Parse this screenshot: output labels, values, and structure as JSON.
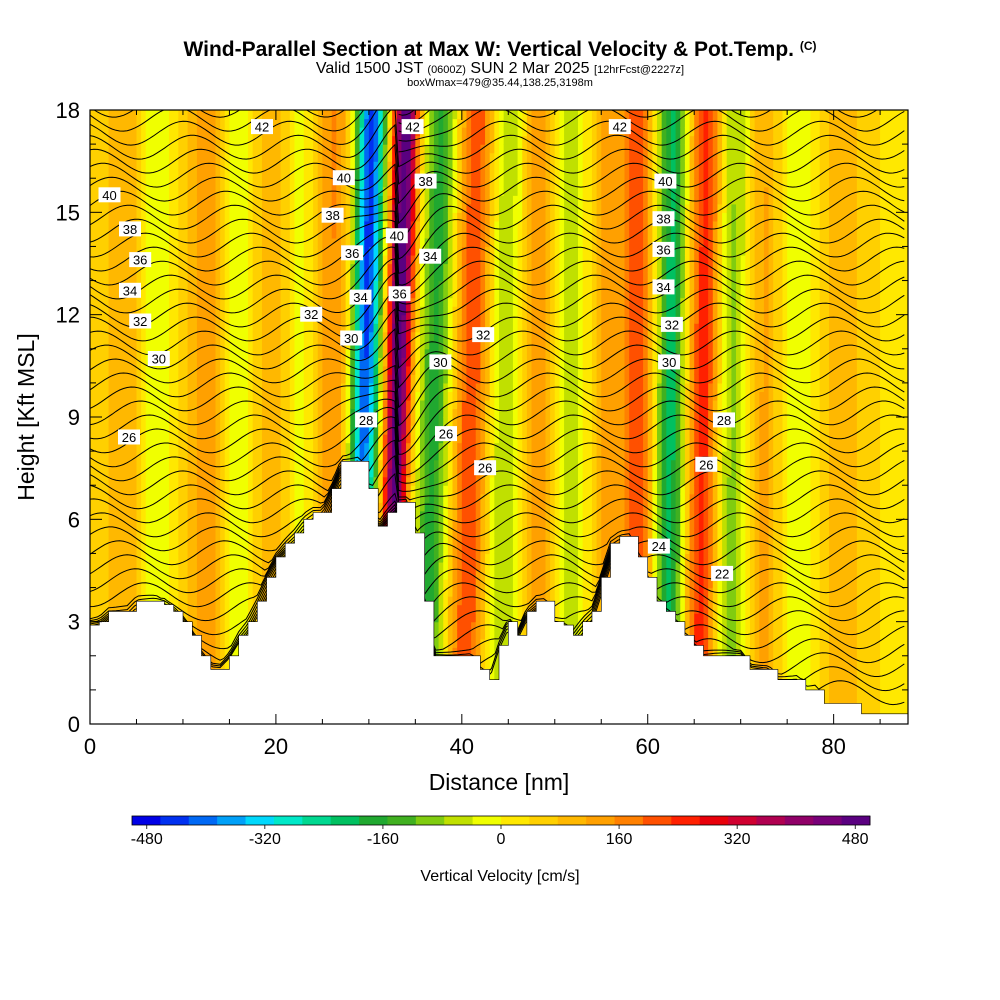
{
  "title_main": "Wind-Parallel Section at Max W: Vertical Velocity & Pot.Temp.",
  "title_mark": "(C)",
  "subtitle_main": "Valid 1500 JST",
  "subtitle_utc": "(0600Z)",
  "subtitle_date": "SUN 2 Mar 2025",
  "subtitle_fcst": "[12hrFcst@2227z]",
  "subsubtitle": "boxWmax=479@35.44,138.25,3198m",
  "chart_data": {
    "type": "heatmap",
    "title": "Wind-Parallel Section at Max W: Vertical Velocity & Pot.Temp.",
    "xlabel": "Distance [nm]",
    "ylabel": "Height [Kft MSL]",
    "xlim": [
      0,
      88
    ],
    "ylim": [
      0,
      18
    ],
    "x_ticks": [
      "0",
      "20",
      "40",
      "60",
      "80"
    ],
    "x_tick_values": [
      0,
      20,
      40,
      60,
      80
    ],
    "y_ticks": [
      "0",
      "3",
      "6",
      "9",
      "12",
      "15",
      "18"
    ],
    "y_tick_values": [
      0,
      3,
      6,
      9,
      12,
      15,
      18
    ],
    "colorbar": {
      "label": "Vertical Velocity [cm/s]",
      "range": [
        -500,
        500
      ],
      "labels": [
        "-480",
        "-320",
        "-160",
        "0",
        "160",
        "320",
        "480"
      ],
      "label_values": [
        -480,
        -320,
        -160,
        0,
        160,
        320,
        480
      ],
      "colors": [
        "#0000e6",
        "#0030f0",
        "#0068f4",
        "#00a0f8",
        "#00d8fc",
        "#00e8c8",
        "#00d890",
        "#00c060",
        "#20a830",
        "#40b020",
        "#80cc10",
        "#c0e000",
        "#f0ff00",
        "#ffe800",
        "#ffd000",
        "#ffb800",
        "#ffa000",
        "#ff8000",
        "#ff5000",
        "#ff2000",
        "#e8000a",
        "#d00030",
        "#b00050",
        "#900068",
        "#780078",
        "#5a0080"
      ]
    },
    "terrain_kft": {
      "x": [
        0,
        1,
        2,
        3,
        4,
        5,
        6,
        7,
        8,
        9,
        10,
        11,
        12,
        13,
        14,
        15,
        16,
        17,
        18,
        19,
        20,
        21,
        22,
        23,
        24,
        25,
        26,
        27,
        28,
        29,
        30,
        31,
        32,
        33,
        34,
        35,
        36,
        37,
        38,
        39,
        40,
        41,
        42,
        43,
        44,
        45,
        46,
        47,
        48,
        49,
        50,
        51,
        52,
        53,
        54,
        55,
        56,
        57,
        58,
        59,
        60,
        61,
        62,
        63,
        64,
        65,
        66,
        67,
        68,
        69,
        70,
        71,
        72,
        73,
        74,
        75,
        76,
        77,
        78,
        79,
        80,
        81,
        82,
        83,
        84,
        85,
        86,
        87,
        88
      ],
      "y": [
        2.9,
        3.0,
        3.3,
        3.3,
        3.3,
        3.6,
        3.6,
        3.6,
        3.5,
        3.3,
        3.0,
        2.6,
        2.0,
        1.6,
        1.6,
        2.0,
        2.6,
        3.0,
        3.6,
        4.3,
        4.9,
        5.3,
        5.6,
        6.0,
        6.2,
        6.2,
        6.9,
        7.7,
        7.7,
        7.7,
        6.9,
        5.8,
        6.2,
        6.5,
        6.5,
        5.6,
        3.6,
        2.0,
        2.0,
        2.0,
        2.0,
        2.0,
        1.6,
        1.3,
        2.3,
        3.0,
        2.6,
        3.3,
        3.6,
        3.6,
        3.0,
        2.9,
        2.6,
        3.0,
        3.3,
        4.3,
        5.3,
        5.5,
        5.5,
        4.9,
        4.3,
        3.6,
        3.3,
        3.0,
        2.6,
        2.3,
        2.0,
        2.0,
        2.0,
        2.0,
        2.0,
        1.6,
        1.6,
        1.6,
        1.3,
        1.3,
        1.3,
        1.0,
        1.0,
        0.6,
        0.6,
        0.6,
        0.6,
        0.3,
        0.3,
        0.3,
        0.3,
        0.3,
        0.3
      ]
    },
    "w_features": [
      {
        "x_center": 4,
        "width": 3,
        "w": 80,
        "tilt": 0
      },
      {
        "x_center": 7,
        "width": 2,
        "w": -90,
        "tilt": 0
      },
      {
        "x_center": 13,
        "width": 2.5,
        "w": 120,
        "tilt": 0
      },
      {
        "x_center": 15.5,
        "width": 2,
        "w": -110,
        "tilt": 0
      },
      {
        "x_center": 20,
        "width": 2.5,
        "w": 100,
        "tilt": 0
      },
      {
        "x_center": 22.5,
        "width": 2,
        "w": -100,
        "tilt": 0
      },
      {
        "x_center": 26,
        "width": 2.5,
        "w": 130,
        "tilt": 0
      },
      {
        "x_center": 29.5,
        "width": 1.6,
        "w": -480,
        "tilt": 0.09
      },
      {
        "x_center": 33.0,
        "width": 1.4,
        "w": 480,
        "tilt": 0.11
      },
      {
        "x_center": 37.0,
        "width": 1.8,
        "w": -200,
        "tilt": 0.1
      },
      {
        "x_center": 41.0,
        "width": 2.0,
        "w": 200,
        "tilt": 0.08
      },
      {
        "x_center": 44.5,
        "width": 2.0,
        "w": -110,
        "tilt": 0.05
      },
      {
        "x_center": 48.5,
        "width": 2.0,
        "w": 120,
        "tilt": 0
      },
      {
        "x_center": 51.5,
        "width": 2.0,
        "w": -90,
        "tilt": 0
      },
      {
        "x_center": 56,
        "width": 2.0,
        "w": 110,
        "tilt": 0
      },
      {
        "x_center": 59,
        "width": 1.5,
        "w": 180,
        "tilt": 0
      },
      {
        "x_center": 62.5,
        "width": 1.6,
        "w": -240,
        "tilt": 0.03
      },
      {
        "x_center": 66,
        "width": 1.8,
        "w": 230,
        "tilt": 0.05
      },
      {
        "x_center": 69,
        "width": 2.0,
        "w": -130,
        "tilt": 0.04
      },
      {
        "x_center": 72.5,
        "width": 2.0,
        "w": 100,
        "tilt": 0
      },
      {
        "x_center": 76,
        "width": 2.2,
        "w": -60,
        "tilt": 0
      },
      {
        "x_center": 81,
        "width": 3.0,
        "w": 60,
        "tilt": 0
      }
    ],
    "theta_levels": [
      22,
      24,
      26,
      28,
      30,
      32,
      34,
      36,
      38,
      40,
      42
    ],
    "contour_labels": [
      {
        "text": "42",
        "x": 18.5,
        "y": 17.5
      },
      {
        "text": "42",
        "x": 34.7,
        "y": 17.5
      },
      {
        "text": "42",
        "x": 57,
        "y": 17.5
      },
      {
        "text": "40",
        "x": 2.1,
        "y": 15.5
      },
      {
        "text": "40",
        "x": 27.3,
        "y": 16.0
      },
      {
        "text": "40",
        "x": 33.0,
        "y": 14.3
      },
      {
        "text": "40",
        "x": 61.9,
        "y": 15.9
      },
      {
        "text": "38",
        "x": 4.3,
        "y": 14.5
      },
      {
        "text": "38",
        "x": 26.1,
        "y": 14.9
      },
      {
        "text": "38",
        "x": 36.1,
        "y": 15.9
      },
      {
        "text": "38",
        "x": 61.7,
        "y": 14.8
      },
      {
        "text": "36",
        "x": 5.4,
        "y": 13.6
      },
      {
        "text": "36",
        "x": 28.2,
        "y": 13.8
      },
      {
        "text": "36",
        "x": 33.3,
        "y": 12.6
      },
      {
        "text": "36",
        "x": 61.7,
        "y": 13.9
      },
      {
        "text": "34",
        "x": 4.3,
        "y": 12.7
      },
      {
        "text": "34",
        "x": 29.1,
        "y": 12.5
      },
      {
        "text": "34",
        "x": 36.6,
        "y": 13.7
      },
      {
        "text": "34",
        "x": 61.7,
        "y": 12.8
      },
      {
        "text": "32",
        "x": 5.4,
        "y": 11.8
      },
      {
        "text": "32",
        "x": 23.8,
        "y": 12.0
      },
      {
        "text": "32",
        "x": 42.3,
        "y": 11.4
      },
      {
        "text": "32",
        "x": 62.6,
        "y": 11.7
      },
      {
        "text": "30",
        "x": 7.4,
        "y": 10.7
      },
      {
        "text": "30",
        "x": 28.1,
        "y": 11.3
      },
      {
        "text": "30",
        "x": 37.7,
        "y": 10.6
      },
      {
        "text": "30",
        "x": 62.3,
        "y": 10.6
      },
      {
        "text": "28",
        "x": 29.7,
        "y": 8.9
      },
      {
        "text": "28",
        "x": 68.2,
        "y": 8.9
      },
      {
        "text": "26",
        "x": 4.2,
        "y": 8.4
      },
      {
        "text": "26",
        "x": 38.3,
        "y": 8.5
      },
      {
        "text": "26",
        "x": 42.5,
        "y": 7.5
      },
      {
        "text": "26",
        "x": 66.3,
        "y": 7.6
      },
      {
        "text": "24",
        "x": 61.2,
        "y": 5.2
      },
      {
        "text": "22",
        "x": 68.0,
        "y": 4.4
      }
    ]
  }
}
